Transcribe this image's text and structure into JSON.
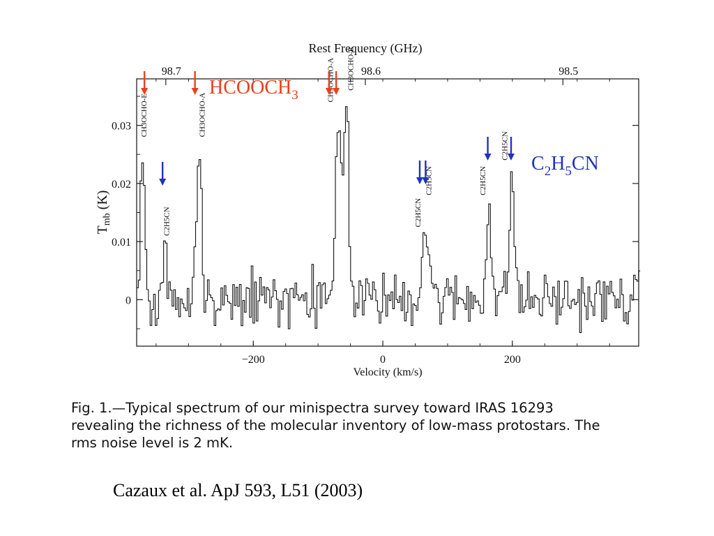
{
  "chart_data": {
    "type": "line",
    "xlabel": "Velocity (km/s)",
    "ylabel_main": "T",
    "ylabel_sub": "mb",
    "ylabel_unit": " (K)",
    "top_axis_label": "Rest Frequency (GHz)",
    "xlim": [
      -380,
      395
    ],
    "ylim": [
      -0.008,
      0.038
    ],
    "x_ticks": [
      {
        "value": -200,
        "label": "−200"
      },
      {
        "value": 0,
        "label": "0"
      },
      {
        "value": 200,
        "label": "200"
      }
    ],
    "y_ticks": [
      {
        "value": 0,
        "label": "0"
      },
      {
        "value": 0.01,
        "label": "0.01"
      },
      {
        "value": 0.02,
        "label": "0.02"
      },
      {
        "value": 0.03,
        "label": "0.03"
      }
    ],
    "top_ticks": [
      {
        "velocity": -335,
        "label": "98.7"
      },
      {
        "velocity": -27,
        "label": "98.6"
      },
      {
        "velocity": 278,
        "label": "98.5"
      }
    ],
    "peaks": [
      {
        "v": -372,
        "t": 0.027
      },
      {
        "v": -338,
        "t": 0.009
      },
      {
        "v": -285,
        "t": 0.026
      },
      {
        "v": -70,
        "t": 0.032
      },
      {
        "v": -58,
        "t": 0.036
      },
      {
        "v": 62,
        "t": 0.011
      },
      {
        "v": 70,
        "t": 0.007
      },
      {
        "v": 162,
        "t": 0.016
      },
      {
        "v": 198,
        "t": 0.021
      }
    ],
    "line_labels": [
      {
        "v": -365,
        "t": 0.0275,
        "text": "CH3OCHO-E"
      },
      {
        "v": -330,
        "t": 0.0105,
        "text": "C2H5CN"
      },
      {
        "v": -275,
        "t": 0.0275,
        "text": "CH3OCHO-A"
      },
      {
        "v": -77,
        "t": 0.0335,
        "text": "CH3OCHO-A"
      },
      {
        "v": -46,
        "t": 0.0355,
        "text": "CH3OCHO-E"
      },
      {
        "v": 58,
        "t": 0.012,
        "text": "C2H5CN"
      },
      {
        "v": 75,
        "t": 0.0175,
        "text": "C2H5CN"
      },
      {
        "v": 158,
        "t": 0.0175,
        "text": "C2H5CN"
      },
      {
        "v": 192,
        "t": 0.0235,
        "text": "C2H5CN"
      }
    ],
    "red_arrow_velocities": [
      -368,
      -290,
      -83,
      -72
    ],
    "blue_arrow_velocities": [
      -340,
      57,
      66,
      162,
      198
    ],
    "species_labels": {
      "red": {
        "text": "HCOOCH",
        "sub": "3",
        "color": "#e8401c"
      },
      "blue": {
        "parts": [
          "C",
          "2",
          "H",
          "5",
          "CN"
        ],
        "color": "#2233bb"
      }
    }
  },
  "caption": {
    "line1": "Fig. 1.—Typical spectrum of our minispectra survey toward IRAS 16293",
    "line2": "revealing the richness of the molecular inventory of low-mass protostars. The",
    "line3": "rms noise level is 2 mK."
  },
  "citation": "Cazaux et al. ApJ 593, L51 (2003)"
}
